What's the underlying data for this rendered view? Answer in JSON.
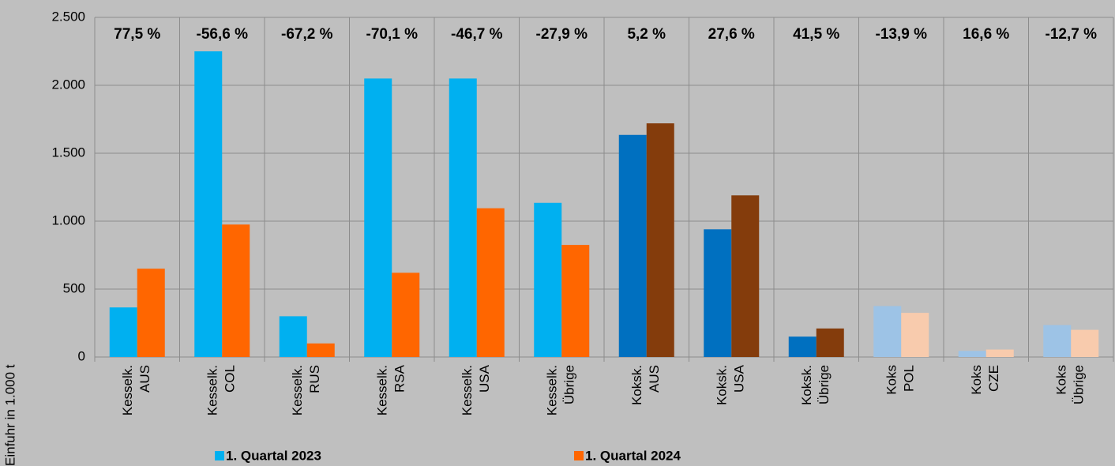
{
  "chart_data": {
    "type": "bar",
    "y_label": "Einfuhr in 1.000 t",
    "categories": [
      [
        "Kesselk.",
        "AUS"
      ],
      [
        "Kesselk.",
        "COL"
      ],
      [
        "Kesselk.",
        "RUS"
      ],
      [
        "Kesselk.",
        "RSA"
      ],
      [
        "Kesselk.",
        "USA"
      ],
      [
        "Kesselk.",
        "Übrige"
      ],
      [
        "Koksk.",
        "AUS"
      ],
      [
        "Koksk.",
        "USA"
      ],
      [
        "Koksk.",
        "Übrige"
      ],
      [
        "Koks",
        "POL"
      ],
      [
        "Koks",
        "CZE"
      ],
      [
        "Koks",
        "Übrige"
      ]
    ],
    "annotations": [
      "77,5 %",
      "-56,6 %",
      "-67,2 %",
      "-70,1 %",
      "-46,7 %",
      "-27,9 %",
      "5,2 %",
      "27,6 %",
      "41,5 %",
      "-13,9 %",
      "16,6 %",
      "-12,7 %"
    ],
    "series": [
      {
        "name": "1. Quartal 2023",
        "color": "#00b0f0",
        "colors": [
          "#00b0f0",
          "#00b0f0",
          "#00b0f0",
          "#00b0f0",
          "#00b0f0",
          "#00b0f0",
          "#0070c0",
          "#0070c0",
          "#0070c0",
          "#9dc3e6",
          "#9dc3e6",
          "#9dc3e6"
        ],
        "values": [
          365,
          2250,
          300,
          2050,
          2050,
          1135,
          1635,
          940,
          150,
          375,
          45,
          235
        ]
      },
      {
        "name": "1. Quartal 2024",
        "color": "#ff6600",
        "colors": [
          "#ff6600",
          "#ff6600",
          "#ff6600",
          "#ff6600",
          "#ff6600",
          "#ff6600",
          "#843c0c",
          "#843c0c",
          "#843c0c",
          "#f8cbad",
          "#f8cbad",
          "#f8cbad"
        ],
        "values": [
          650,
          975,
          100,
          620,
          1095,
          825,
          1720,
          1190,
          210,
          325,
          55,
          200
        ]
      }
    ],
    "ylim": [
      0,
      2500
    ],
    "yticks": [
      0,
      500,
      {
        "value": 1000,
        "label": "1.000"
      },
      {
        "value": 1500,
        "label": "1.500"
      },
      {
        "value": 2000,
        "label": "2.000"
      },
      {
        "value": 2500,
        "label": "2.500"
      }
    ],
    "grid": true
  }
}
